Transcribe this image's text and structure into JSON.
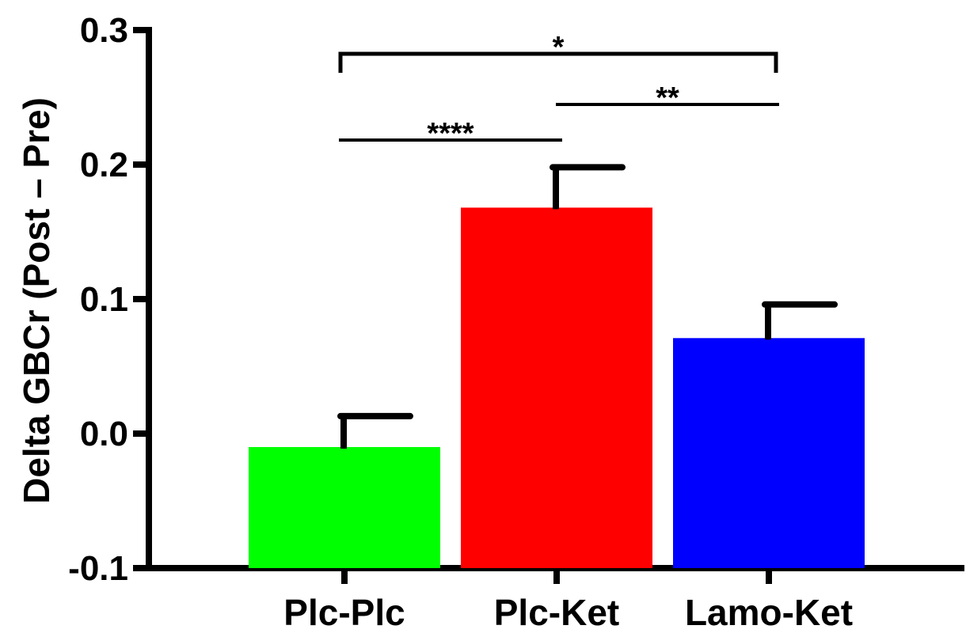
{
  "chart_data": {
    "type": "bar",
    "title": "",
    "xlabel": "",
    "ylabel": "Delta GBCr (Post – Pre)",
    "ylim": [
      -0.1,
      0.3
    ],
    "yticks": [
      -0.1,
      0.0,
      0.1,
      0.2,
      0.3
    ],
    "ytick_labels": [
      "-0.1",
      "0.0",
      "0.1",
      "0.2",
      "0.3"
    ],
    "grid": false,
    "legend": "none",
    "categories": [
      "Plc-Plc",
      "Plc-Ket",
      "Lamo-Ket"
    ],
    "values": [
      -0.01,
      0.168,
      0.071
    ],
    "errors": [
      0.023,
      0.03,
      0.025
    ],
    "colors": [
      "#00ff00",
      "#ff0000",
      "#0000ff"
    ],
    "significance": [
      {
        "from": 0,
        "to": 2,
        "label": "*",
        "style": "bracket"
      },
      {
        "from": 1,
        "to": 2,
        "label": "**",
        "style": "line"
      },
      {
        "from": 0,
        "to": 1,
        "label": "****",
        "style": "line"
      }
    ]
  }
}
